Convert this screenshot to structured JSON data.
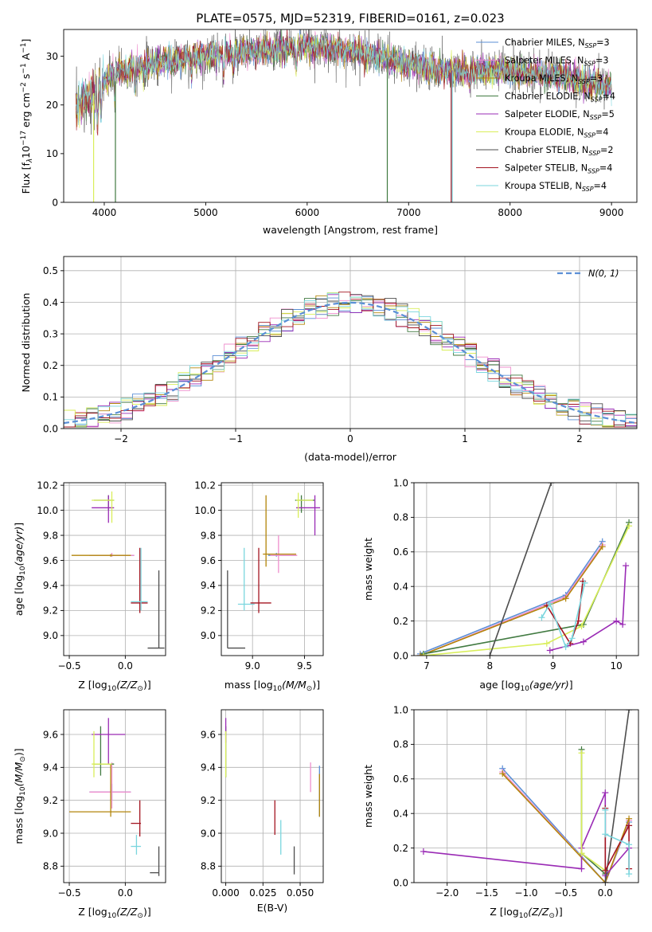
{
  "series_colors": [
    "#5b8fd6",
    "#ef8fce",
    "#b3860b",
    "#417a41",
    "#9a2bb5",
    "#d9ee5a",
    "#4d4d4d",
    "#a31521",
    "#7ad6de"
  ],
  "chart_data": [
    {
      "id": "spectrum",
      "type": "line",
      "title": "PLATE=0575, MJD=52319, FIBERID=0161, z=0.023",
      "xlabel": "wavelength [Angstrom, rest frame]",
      "ylabel": "Flux [f",
      "xlim": [
        3600,
        9250
      ],
      "ylim": [
        0,
        35.5
      ],
      "xticks": [
        "4000",
        "5000",
        "6000",
        "7000",
        "8000",
        "9000"
      ],
      "yticks": [
        "0",
        "10",
        "20",
        "30"
      ],
      "grid": false,
      "legend_position": "top-right",
      "legend": [
        {
          "model": "Chabrier MILES, N",
          "sub": "SSP",
          "val": "=3"
        },
        {
          "model": "Salpeter MILES, N",
          "sub": "SSP",
          "val": "=3"
        },
        {
          "model": "Kroupa MILES, N",
          "sub": "SSP",
          "val": "=3"
        },
        {
          "model": "Chabrier ELODIE, N",
          "sub": "SSP",
          "val": "=4"
        },
        {
          "model": "Salpeter ELODIE, N",
          "sub": "SSP",
          "val": "=5"
        },
        {
          "model": "Kroupa ELODIE, N",
          "sub": "SSP",
          "val": "=4"
        },
        {
          "model": "Chabrier STELIB, N",
          "sub": "SSP",
          "val": "=2"
        },
        {
          "model": "Salpeter STELIB, N",
          "sub": "SSP",
          "val": "=4"
        },
        {
          "model": "Kroupa STELIB, N",
          "sub": "SSP",
          "val": "=4"
        }
      ],
      "continuum": [
        [
          3720,
          19
        ],
        [
          3800,
          21
        ],
        [
          3900,
          22.5
        ],
        [
          4000,
          25
        ],
        [
          4100,
          27
        ],
        [
          4200,
          27.5
        ],
        [
          4400,
          28
        ],
        [
          4600,
          29
        ],
        [
          4800,
          29.5
        ],
        [
          5000,
          30
        ],
        [
          5200,
          30.5
        ],
        [
          5500,
          31
        ],
        [
          5800,
          31.5
        ],
        [
          6000,
          32
        ],
        [
          6200,
          31.5
        ],
        [
          6500,
          31
        ],
        [
          6800,
          29.5
        ],
        [
          7000,
          28.5
        ],
        [
          7200,
          27.5
        ],
        [
          7400,
          27
        ],
        [
          7600,
          27
        ],
        [
          7800,
          27
        ],
        [
          8000,
          27
        ],
        [
          8200,
          26.5
        ],
        [
          8400,
          26
        ],
        [
          8600,
          25.5
        ],
        [
          8800,
          24.5
        ],
        [
          9000,
          24
        ]
      ]
    },
    {
      "id": "residuals",
      "type": "histogram",
      "xlabel": "(data-model)/error",
      "ylabel": "Normed distribution",
      "xlim": [
        -2.5,
        2.5
      ],
      "ylim": [
        0,
        0.545
      ],
      "xticks": [
        "−2",
        "−1",
        "0",
        "1",
        "2"
      ],
      "yticks": [
        "0.0",
        "0.1",
        "0.2",
        "0.3",
        "0.4",
        "0.5"
      ],
      "grid": true,
      "legend_label": "N(0, 1)",
      "bin_width": 0.1
    },
    {
      "id": "age-vs-Z",
      "type": "errorbar",
      "xlabel": "Z [log",
      "ylabel": "age  [log",
      "xlim": [
        -0.55,
        0.36
      ],
      "ylim": [
        8.84,
        10.22
      ],
      "xticks": [
        "−0.5",
        "0.0"
      ],
      "yticks": [
        "9.0",
        "9.2",
        "9.4",
        "9.6",
        "9.8",
        "10.0",
        "10.2"
      ],
      "grid": true,
      "points": [
        {
          "s": 0,
          "x": -0.12,
          "xe": [
            -0.32,
            0.08
          ],
          "y": 9.64,
          "ye": [
            9.63,
            9.65
          ]
        },
        {
          "s": 1,
          "x": -0.12,
          "xe": [
            -0.32,
            0.08
          ],
          "y": 9.64,
          "ye": [
            9.63,
            9.66
          ]
        },
        {
          "s": 2,
          "x": -0.13,
          "xe": [
            -0.48,
            0.05
          ],
          "y": 9.64,
          "ye": [
            9.63,
            9.65
          ]
        },
        {
          "s": 3,
          "x": -0.15,
          "xe": [
            -0.28,
            -0.1
          ],
          "y": 10.08,
          "ye": [
            10.0,
            10.12
          ]
        },
        {
          "s": 4,
          "x": -0.15,
          "xe": [
            -0.3,
            -0.1
          ],
          "y": 10.02,
          "ye": [
            9.9,
            10.12
          ]
        },
        {
          "s": 5,
          "x": -0.12,
          "xe": [
            -0.3,
            -0.1
          ],
          "y": 10.08,
          "ye": [
            9.9,
            10.15
          ]
        },
        {
          "s": 6,
          "x": 0.3,
          "xe": [
            0.2,
            0.35
          ],
          "y": 8.9,
          "ye": [
            8.9,
            9.52
          ]
        },
        {
          "s": 7,
          "x": 0.13,
          "xe": [
            0.05,
            0.2
          ],
          "y": 9.26,
          "ye": [
            9.18,
            9.7
          ]
        },
        {
          "s": 8,
          "x": 0.14,
          "xe": [
            0.05,
            0.2
          ],
          "y": 9.27,
          "ye": [
            9.2,
            9.7
          ]
        }
      ]
    },
    {
      "id": "age-vs-mass",
      "type": "errorbar",
      "xlabel": "mass [log",
      "ylabel": "",
      "xlim": [
        8.7,
        9.68
      ],
      "ylim": [
        8.84,
        10.22
      ],
      "xticks": [
        "9.0",
        "9.5"
      ],
      "yticks": [
        "9.0",
        "9.2",
        "9.4",
        "9.6",
        "9.8",
        "10.0",
        "10.2"
      ],
      "grid": true,
      "points": [
        {
          "s": 0,
          "x": 9.23,
          "xe": [
            9.15,
            9.42
          ],
          "y": 9.64,
          "ye": [
            9.63,
            9.66
          ]
        },
        {
          "s": 1,
          "x": 9.25,
          "xe": [
            9.17,
            9.43
          ],
          "y": 9.64,
          "ye": [
            9.5,
            9.8
          ]
        },
        {
          "s": 2,
          "x": 9.13,
          "xe": [
            9.1,
            9.42
          ],
          "y": 9.65,
          "ye": [
            9.55,
            10.12
          ]
        },
        {
          "s": 3,
          "x": 9.47,
          "xe": [
            9.41,
            9.6
          ],
          "y": 10.08,
          "ye": [
            9.98,
            10.12
          ]
        },
        {
          "s": 4,
          "x": 9.6,
          "xe": [
            9.42,
            9.65
          ],
          "y": 10.02,
          "ye": [
            9.8,
            10.12
          ]
        },
        {
          "s": 5,
          "x": 9.44,
          "xe": [
            9.42,
            9.58
          ],
          "y": 10.08,
          "ye": [
            9.94,
            10.14
          ]
        },
        {
          "s": 6,
          "x": 8.76,
          "xe": [
            8.76,
            8.93
          ],
          "y": 8.9,
          "ye": [
            8.9,
            9.52
          ]
        },
        {
          "s": 7,
          "x": 9.06,
          "xe": [
            8.98,
            9.18
          ],
          "y": 9.26,
          "ye": [
            9.18,
            9.7
          ]
        },
        {
          "s": 8,
          "x": 8.92,
          "xe": [
            8.86,
            9.02
          ],
          "y": 9.25,
          "ye": [
            9.2,
            9.7
          ]
        }
      ]
    },
    {
      "id": "massweight-vs-age",
      "type": "line",
      "xlabel": "age  [log",
      "ylabel": "mass weight",
      "xlim": [
        6.8,
        10.35
      ],
      "ylim": [
        0,
        1
      ],
      "xticks": [
        "7",
        "8",
        "9",
        "10"
      ],
      "yticks": [
        "0.0",
        "0.2",
        "0.4",
        "0.6",
        "0.8",
        "1.0"
      ],
      "grid": true,
      "series": [
        {
          "s": 0,
          "x": [
            6.9,
            9.2,
            9.78
          ],
          "y": [
            0.01,
            0.35,
            0.66
          ]
        },
        {
          "s": 1,
          "x": [
            6.9,
            9.2,
            9.78
          ],
          "y": [
            0.0,
            0.34,
            0.64
          ]
        },
        {
          "s": 2,
          "x": [
            6.9,
            9.2,
            9.78
          ],
          "y": [
            0.0,
            0.33,
            0.63
          ]
        },
        {
          "s": 3,
          "x": [
            6.95,
            9.48,
            10.2
          ],
          "y": [
            0.01,
            0.18,
            0.77
          ]
        },
        {
          "s": 4,
          "x": [
            8.95,
            9.48,
            10.0,
            10.1,
            10.15
          ],
          "y": [
            0.03,
            0.08,
            0.2,
            0.18,
            0.52
          ]
        },
        {
          "s": 5,
          "x": [
            6.95,
            8.9,
            9.45,
            10.2
          ],
          "y": [
            0.0,
            0.07,
            0.17,
            0.75
          ]
        },
        {
          "s": 6,
          "x": [
            8.0,
            8.97
          ],
          "y": [
            0.0,
            1.0
          ]
        },
        {
          "s": 7,
          "x": [
            8.9,
            9.27,
            9.4,
            9.47
          ],
          "y": [
            0.29,
            0.07,
            0.2,
            0.43
          ]
        },
        {
          "s": 8,
          "x": [
            8.82,
            8.95,
            9.2,
            9.3,
            9.5
          ],
          "y": [
            0.22,
            0.3,
            0.05,
            0.1,
            0.42
          ]
        }
      ]
    },
    {
      "id": "mass-vs-Z",
      "type": "errorbar",
      "xlabel": "Z [log",
      "ylabel": "mass [log",
      "xlim": [
        -0.55,
        0.36
      ],
      "ylim": [
        8.7,
        9.75
      ],
      "xticks": [
        "−0.5",
        "0.0"
      ],
      "yticks": [
        "8.8",
        "9.0",
        "9.2",
        "9.4",
        "9.6"
      ],
      "grid": true,
      "points": [
        {
          "s": 0,
          "x": -0.12,
          "xe": [
            -0.32,
            0.05
          ],
          "y": 9.25,
          "ye": [
            9.2,
            9.3
          ]
        },
        {
          "s": 1,
          "x": -0.12,
          "xe": [
            -0.32,
            0.05
          ],
          "y": 9.25,
          "ye": [
            9.15,
            9.43
          ]
        },
        {
          "s": 2,
          "x": -0.13,
          "xe": [
            -0.5,
            0.05
          ],
          "y": 9.13,
          "ye": [
            9.1,
            9.42
          ]
        },
        {
          "s": 3,
          "x": -0.22,
          "xe": [
            -0.28,
            -0.1
          ],
          "y": 9.42,
          "ye": [
            9.35,
            9.65
          ]
        },
        {
          "s": 4,
          "x": -0.15,
          "xe": [
            -0.3,
            0.0
          ],
          "y": 9.6,
          "ye": [
            9.42,
            9.7
          ]
        },
        {
          "s": 5,
          "x": -0.28,
          "xe": [
            -0.3,
            -0.12
          ],
          "y": 9.42,
          "ye": [
            9.34,
            9.62
          ]
        },
        {
          "s": 6,
          "x": 0.3,
          "xe": [
            0.22,
            0.3
          ],
          "y": 8.76,
          "ye": [
            8.74,
            8.92
          ]
        },
        {
          "s": 7,
          "x": 0.13,
          "xe": [
            0.05,
            0.14
          ],
          "y": 9.06,
          "ye": [
            8.98,
            9.2
          ]
        },
        {
          "s": 8,
          "x": 0.1,
          "xe": [
            0.05,
            0.14
          ],
          "y": 8.92,
          "ye": [
            8.87,
            8.99
          ]
        }
      ]
    },
    {
      "id": "mass-vs-EBV",
      "type": "errorbar",
      "xlabel": "E(B-V)",
      "ylabel": "",
      "xlim": [
        -0.003,
        0.0655
      ],
      "ylim": [
        8.7,
        9.75
      ],
      "xticks": [
        "0.000",
        "0.025",
        "0.050"
      ],
      "yticks": [
        "8.8",
        "9.0",
        "9.2",
        "9.4",
        "9.6"
      ],
      "grid": true,
      "points": [
        {
          "s": 0,
          "x": 0.063,
          "xe": [
            0.063,
            0.063
          ],
          "y": 9.25,
          "ye": [
            9.1,
            9.41
          ]
        },
        {
          "s": 1,
          "x": 0.057,
          "xe": [
            0.057,
            0.057
          ],
          "y": 9.25,
          "ye": [
            9.25,
            9.43
          ]
        },
        {
          "s": 2,
          "x": 0.063,
          "xe": [
            0.063,
            0.063
          ],
          "y": 9.25,
          "ye": [
            9.1,
            9.36
          ]
        },
        {
          "s": 3,
          "x": 0.0,
          "xe": [
            0.0,
            0.0
          ],
          "y": 9.5,
          "ye": [
            9.34,
            9.65
          ]
        },
        {
          "s": 4,
          "x": 0.0,
          "xe": [
            0.0,
            0.0
          ],
          "y": 9.6,
          "ye": [
            9.55,
            9.7
          ]
        },
        {
          "s": 5,
          "x": 0.0,
          "xe": [
            0.0,
            0.0
          ],
          "y": 9.5,
          "ye": [
            9.34,
            9.62
          ]
        },
        {
          "s": 6,
          "x": 0.046,
          "xe": [
            0.046,
            0.046
          ],
          "y": 8.83,
          "ye": [
            8.75,
            8.92
          ]
        },
        {
          "s": 7,
          "x": 0.033,
          "xe": [
            0.033,
            0.033
          ],
          "y": 9.1,
          "ye": [
            8.99,
            9.2
          ]
        },
        {
          "s": 8,
          "x": 0.037,
          "xe": [
            0.037,
            0.037
          ],
          "y": 9.0,
          "ye": [
            8.87,
            9.08
          ]
        }
      ]
    },
    {
      "id": "massweight-vs-Z",
      "type": "line",
      "xlabel": "Z [log",
      "ylabel": "mass weight",
      "xlim": [
        -2.42,
        0.42
      ],
      "ylim": [
        0,
        1
      ],
      "xticks": [
        "−2.0",
        "−1.5",
        "−1.0",
        "−0.5",
        "0.0"
      ],
      "yticks": [
        "0.0",
        "0.2",
        "0.4",
        "0.6",
        "0.8",
        "1.0"
      ],
      "grid": true,
      "series": [
        {
          "s": 0,
          "x": [
            -1.3,
            0.0,
            0.3
          ],
          "y": [
            0.66,
            0.0,
            0.35
          ]
        },
        {
          "s": 1,
          "x": [
            -1.3,
            0.0,
            0.3
          ],
          "y": [
            0.64,
            0.0,
            0.36
          ]
        },
        {
          "s": 2,
          "x": [
            -1.3,
            0.0,
            0.3
          ],
          "y": [
            0.63,
            0.0,
            0.37
          ]
        },
        {
          "s": 3,
          "x": [
            -0.3,
            -0.3,
            0.0
          ],
          "y": [
            0.77,
            0.17,
            0.05
          ]
        },
        {
          "s": 4,
          "x": [
            -2.3,
            -0.3,
            -0.3,
            0.0,
            0.0,
            0.3
          ],
          "y": [
            0.18,
            0.08,
            0.2,
            0.52,
            0.04,
            0.2
          ]
        },
        {
          "s": 5,
          "x": [
            -0.3,
            -0.3,
            0.0
          ],
          "y": [
            0.75,
            0.17,
            0.07
          ]
        },
        {
          "s": 6,
          "x": [
            0.0,
            0.3
          ],
          "y": [
            0.0,
            1.0
          ]
        },
        {
          "s": 7,
          "x": [
            0.0,
            0.0,
            0.3,
            0.3
          ],
          "y": [
            0.43,
            0.07,
            0.33,
            0.08
          ]
        },
        {
          "s": 8,
          "x": [
            0.0,
            0.0,
            0.3,
            0.3
          ],
          "y": [
            0.42,
            0.28,
            0.22,
            0.05
          ]
        }
      ]
    }
  ],
  "labels": {
    "flux_units": "10",
    "flux_exp": "−17",
    "flux_units2": " erg cm",
    "flux_exp2": "−2",
    "flux_units3": " s",
    "flux_exp3": "−1",
    "flux_units4": " A",
    "flux_exp4": "−1",
    "flux_close": "]",
    "log_sub": "10",
    "z_ratio": "(Z/Z",
    "sun": "⊙",
    "close": ")]",
    "age_ratio": "(age/yr)",
    "close2": "]",
    "mass_ratio": "(M/M"
  }
}
